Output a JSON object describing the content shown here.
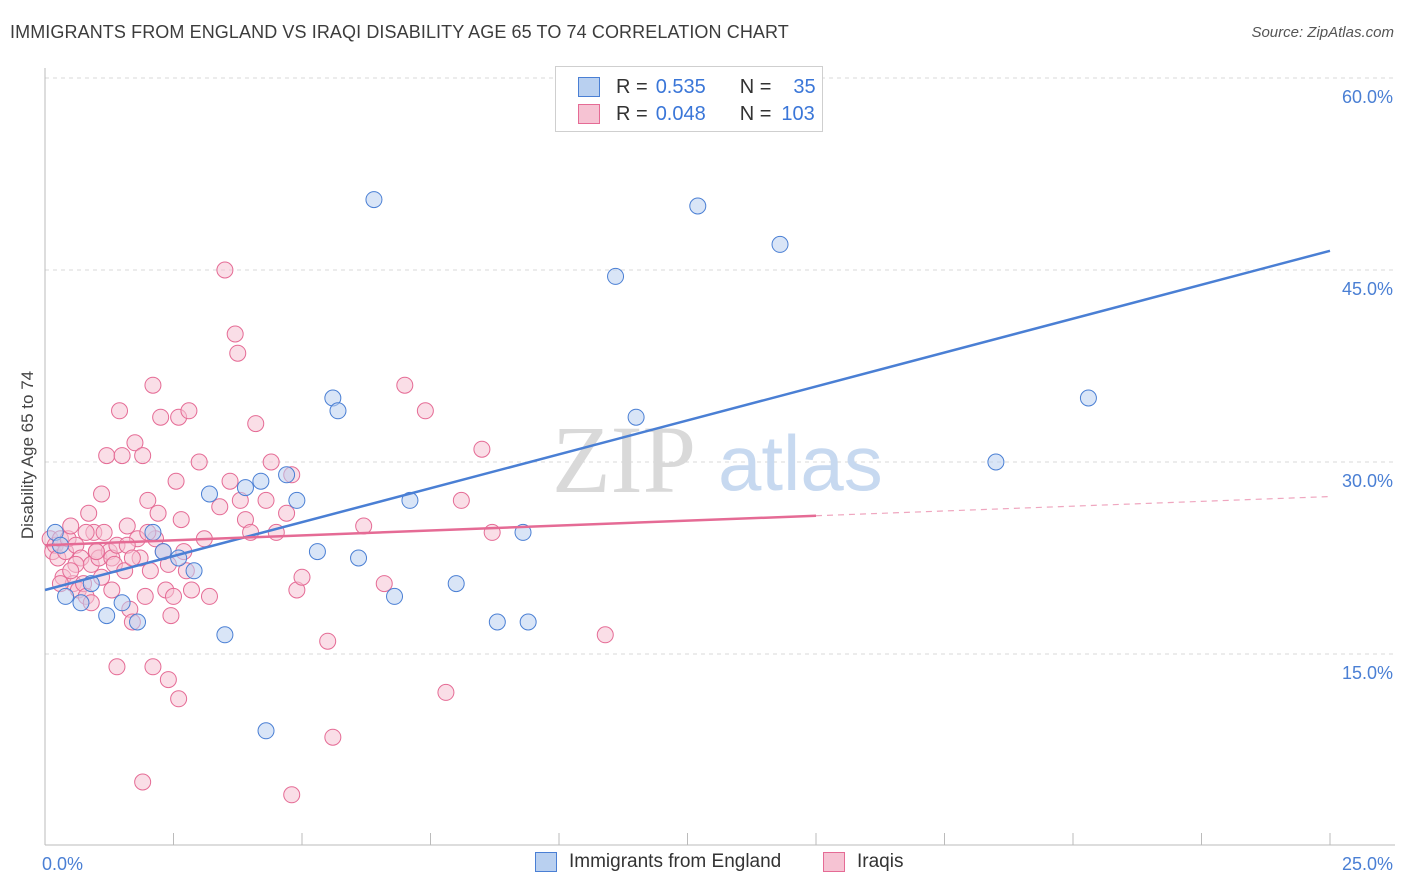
{
  "title": "IMMIGRANTS FROM ENGLAND VS IRAQI DISABILITY AGE 65 TO 74 CORRELATION CHART",
  "source": "Source: ZipAtlas.com",
  "watermark": {
    "zip": "ZIP",
    "atlas": "atlas"
  },
  "legend": {
    "r_label": "R =",
    "n_label": "N =",
    "series": [
      {
        "r": "0.535",
        "n": "35",
        "color": "#4a7fd4"
      },
      {
        "r": "0.048",
        "n": "103",
        "color": "#e56b95"
      }
    ]
  },
  "bottom_legend": [
    "Immigrants from England",
    "Iraqis"
  ],
  "chart_data": {
    "type": "scatter",
    "xlabel": "",
    "ylabel": "Disability Age 65 to 74",
    "xlim": [
      0,
      25
    ],
    "ylim": [
      0,
      63
    ],
    "x_tick_labels": [
      "0.0%",
      "25.0%"
    ],
    "y_ticks": [
      15,
      30,
      45,
      60
    ],
    "y_tick_labels": [
      "15.0%",
      "30.0%",
      "45.0%",
      "60.0%"
    ],
    "grid": "horizontal-dashed",
    "series": [
      {
        "name": "Immigrants from England",
        "color": "#4a7fd4",
        "fill": "#b9d0f0",
        "points": [
          [
            0.2,
            24.5
          ],
          [
            0.3,
            23.5
          ],
          [
            0.4,
            19.5
          ],
          [
            0.7,
            19.0
          ],
          [
            0.9,
            20.5
          ],
          [
            1.2,
            18.0
          ],
          [
            1.5,
            19.0
          ],
          [
            1.8,
            17.5
          ],
          [
            2.1,
            24.5
          ],
          [
            2.3,
            23.0
          ],
          [
            2.6,
            22.5
          ],
          [
            2.9,
            21.5
          ],
          [
            3.2,
            27.5
          ],
          [
            3.5,
            16.5
          ],
          [
            3.9,
            28.0
          ],
          [
            4.2,
            28.5
          ],
          [
            4.3,
            9.0
          ],
          [
            4.7,
            29.0
          ],
          [
            4.9,
            27.0
          ],
          [
            5.3,
            23.0
          ],
          [
            5.6,
            35.0
          ],
          [
            5.7,
            34.0
          ],
          [
            6.1,
            22.5
          ],
          [
            6.4,
            50.5
          ],
          [
            6.8,
            19.5
          ],
          [
            7.1,
            27.0
          ],
          [
            8.0,
            20.5
          ],
          [
            8.8,
            17.5
          ],
          [
            9.3,
            24.5
          ],
          [
            9.4,
            17.5
          ],
          [
            11.1,
            44.5
          ],
          [
            11.5,
            33.5
          ],
          [
            12.7,
            50.0
          ],
          [
            14.3,
            47.0
          ],
          [
            18.5,
            30.0
          ],
          [
            20.3,
            35.0
          ]
        ],
        "trend": {
          "x": [
            0,
            25
          ],
          "y": [
            20.0,
            46.5
          ],
          "style": "solid"
        }
      },
      {
        "name": "Iraqis",
        "color": "#e56b95",
        "fill": "#f6c3d3",
        "points": [
          [
            0.1,
            24.0
          ],
          [
            0.15,
            23.0
          ],
          [
            0.2,
            23.5
          ],
          [
            0.25,
            22.5
          ],
          [
            0.3,
            24.0
          ],
          [
            0.35,
            21.0
          ],
          [
            0.4,
            23.0
          ],
          [
            0.45,
            24.0
          ],
          [
            0.5,
            25.0
          ],
          [
            0.55,
            20.5
          ],
          [
            0.6,
            23.5
          ],
          [
            0.65,
            20.0
          ],
          [
            0.7,
            22.5
          ],
          [
            0.75,
            20.5
          ],
          [
            0.8,
            19.5
          ],
          [
            0.85,
            26.0
          ],
          [
            0.9,
            22.0
          ],
          [
            0.95,
            24.5
          ],
          [
            1.0,
            23.0
          ],
          [
            1.05,
            22.5
          ],
          [
            1.1,
            27.5
          ],
          [
            1.15,
            24.5
          ],
          [
            1.2,
            30.5
          ],
          [
            1.25,
            23.0
          ],
          [
            1.3,
            22.5
          ],
          [
            1.35,
            22.0
          ],
          [
            1.4,
            23.5
          ],
          [
            1.45,
            34.0
          ],
          [
            1.5,
            30.5
          ],
          [
            1.55,
            21.5
          ],
          [
            1.6,
            25.0
          ],
          [
            1.65,
            18.5
          ],
          [
            1.7,
            17.5
          ],
          [
            1.75,
            31.5
          ],
          [
            1.8,
            24.0
          ],
          [
            1.85,
            22.5
          ],
          [
            1.9,
            30.5
          ],
          [
            1.95,
            19.5
          ],
          [
            2.0,
            27.0
          ],
          [
            2.05,
            21.5
          ],
          [
            2.1,
            36.0
          ],
          [
            2.15,
            24.0
          ],
          [
            2.2,
            26.0
          ],
          [
            2.25,
            33.5
          ],
          [
            2.3,
            23.0
          ],
          [
            2.35,
            20.0
          ],
          [
            2.4,
            13.0
          ],
          [
            2.45,
            18.0
          ],
          [
            2.5,
            19.5
          ],
          [
            2.55,
            28.5
          ],
          [
            2.6,
            33.5
          ],
          [
            2.65,
            25.5
          ],
          [
            2.7,
            23.0
          ],
          [
            2.75,
            21.5
          ],
          [
            2.8,
            34.0
          ],
          [
            2.85,
            20.0
          ],
          [
            3.0,
            30.0
          ],
          [
            3.2,
            19.5
          ],
          [
            3.4,
            26.5
          ],
          [
            3.5,
            45.0
          ],
          [
            3.6,
            28.5
          ],
          [
            3.7,
            40.0
          ],
          [
            3.75,
            38.5
          ],
          [
            3.8,
            27.0
          ],
          [
            3.9,
            25.5
          ],
          [
            4.0,
            24.5
          ],
          [
            4.1,
            33.0
          ],
          [
            4.3,
            27.0
          ],
          [
            4.4,
            30.0
          ],
          [
            4.5,
            24.5
          ],
          [
            4.7,
            26.0
          ],
          [
            4.8,
            29.0
          ],
          [
            4.9,
            20.0
          ],
          [
            5.0,
            21.0
          ],
          [
            5.5,
            16.0
          ],
          [
            5.6,
            8.5
          ],
          [
            6.2,
            25.0
          ],
          [
            6.6,
            20.5
          ],
          [
            7.0,
            36.0
          ],
          [
            7.4,
            34.0
          ],
          [
            7.8,
            12.0
          ],
          [
            8.1,
            27.0
          ],
          [
            8.5,
            31.0
          ],
          [
            8.7,
            24.5
          ],
          [
            10.9,
            16.5
          ],
          [
            1.4,
            14.0
          ],
          [
            2.1,
            14.0
          ],
          [
            1.9,
            5.0
          ],
          [
            2.6,
            11.5
          ],
          [
            4.8,
            4.0
          ],
          [
            1.0,
            23.0
          ],
          [
            0.6,
            22.0
          ],
          [
            0.8,
            24.5
          ],
          [
            1.3,
            20.0
          ],
          [
            1.6,
            23.5
          ],
          [
            2.0,
            24.5
          ],
          [
            0.3,
            20.5
          ],
          [
            0.5,
            21.5
          ],
          [
            0.9,
            19.0
          ],
          [
            1.1,
            21.0
          ],
          [
            1.7,
            22.5
          ],
          [
            2.4,
            22.0
          ],
          [
            3.1,
            24.0
          ]
        ],
        "trend": {
          "x": [
            0,
            15
          ],
          "y": [
            23.5,
            25.8
          ],
          "style": "solid",
          "extended": {
            "x": [
              15,
              25
            ],
            "y": [
              25.8,
              27.3
            ],
            "style": "dashed"
          }
        }
      }
    ]
  }
}
